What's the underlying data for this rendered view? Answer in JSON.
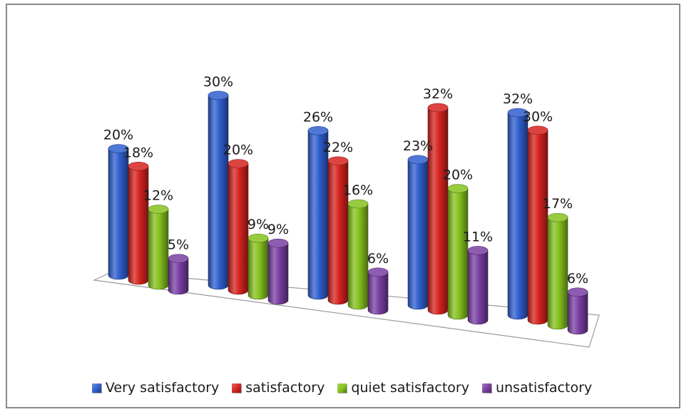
{
  "chart_data": {
    "type": "bar",
    "style": "3d-cylinder",
    "categories": [
      "",
      "",
      "",
      "",
      ""
    ],
    "series": [
      {
        "name": "Very satisfactory",
        "color": "#2f5fcf",
        "values": [
          20,
          30,
          26,
          23,
          32
        ],
        "labels": [
          "20%",
          "30%",
          "26%",
          "23%",
          "32%"
        ]
      },
      {
        "name": "satisfactory",
        "color": "#d6231f",
        "values": [
          18,
          20,
          22,
          32,
          30
        ],
        "labels": [
          "18%",
          "20%",
          "22%",
          "32%",
          "30%"
        ]
      },
      {
        "name": "quiet satisfactory",
        "color": "#86c21e",
        "values": [
          12,
          9,
          16,
          20,
          17
        ],
        "labels": [
          "12%",
          "9%",
          "16%",
          "20%",
          "17%"
        ]
      },
      {
        "name": "unsatisfactory",
        "color": "#7a3fa3",
        "values": [
          5,
          9,
          6,
          11,
          6
        ],
        "labels": [
          "5%",
          "9%",
          "6%",
          "11%",
          "6%"
        ]
      }
    ],
    "ylim": [
      0,
      32
    ],
    "grid": false,
    "legend_position": "bottom"
  }
}
